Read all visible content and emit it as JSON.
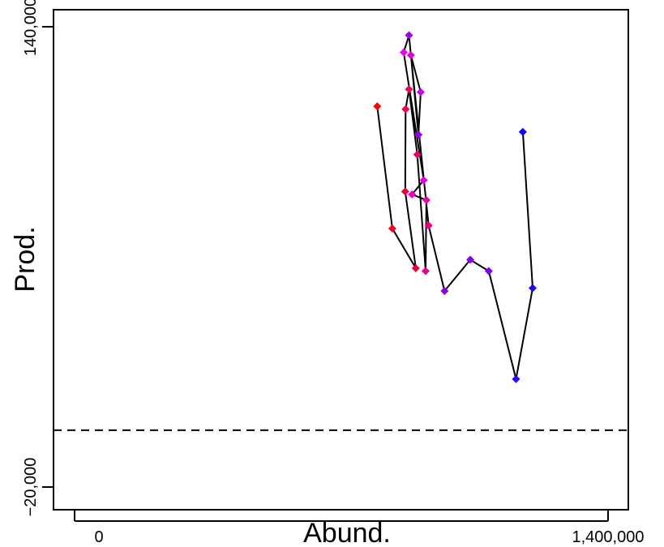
{
  "chart_data": {
    "type": "scatter",
    "xlabel": "Abund.",
    "ylabel": "Prod.",
    "xlim": [
      -60000,
      1460000
    ],
    "ylim": [
      -28000,
      148000
    ],
    "x_ticks": [
      0,
      1400000
    ],
    "x_tick_labels": [
      "0",
      "1,400,000"
    ],
    "y_ticks": [
      -20000,
      140000
    ],
    "y_tick_labels": [
      "−20,000",
      "140,000"
    ],
    "reference_line": {
      "y": 0,
      "style": "dashed"
    },
    "grid": false,
    "series": [
      {
        "connected": true,
        "points": [
          {
            "x": 796000,
            "y": 114000,
            "color": "#ff0000"
          },
          {
            "x": 836000,
            "y": 71000,
            "color": "#f20024"
          },
          {
            "x": 898000,
            "y": 57000,
            "color": "#ec0030"
          },
          {
            "x": 870000,
            "y": 84000,
            "color": "#e6003c"
          },
          {
            "x": 871000,
            "y": 113000,
            "color": "#f0004d"
          },
          {
            "x": 880000,
            "y": 120000,
            "color": "#ee0060"
          },
          {
            "x": 902000,
            "y": 97000,
            "color": "#e6006e"
          },
          {
            "x": 924000,
            "y": 56000,
            "color": "#e6008a"
          },
          {
            "x": 926000,
            "y": 81000,
            "color": "#ee00a8"
          },
          {
            "x": 888000,
            "y": 83000,
            "color": "#f000c0"
          },
          {
            "x": 919000,
            "y": 88000,
            "color": "#e600e0"
          },
          {
            "x": 866000,
            "y": 133000,
            "color": "#f000f0"
          },
          {
            "x": 880000,
            "y": 139000,
            "color": "#a000f0"
          },
          {
            "x": 905000,
            "y": 104000,
            "color": "#9a00f2"
          },
          {
            "x": 911000,
            "y": 119000,
            "color": "#cc00f0"
          },
          {
            "x": 885000,
            "y": 132000,
            "color": "#e000e6"
          },
          {
            "x": 932000,
            "y": 72000,
            "color": "#e8007c"
          },
          {
            "x": 974000,
            "y": 49000,
            "color": "#9400d3"
          },
          {
            "x": 1042000,
            "y": 60000,
            "color": "#8a00f0"
          },
          {
            "x": 1091000,
            "y": 56000,
            "color": "#8000f0"
          },
          {
            "x": 1163000,
            "y": 18000,
            "color": "#3000ff"
          },
          {
            "x": 1207000,
            "y": 50000,
            "color": "#1a00ff"
          },
          {
            "x": 1181000,
            "y": 105000,
            "color": "#1000ff"
          }
        ]
      }
    ]
  }
}
